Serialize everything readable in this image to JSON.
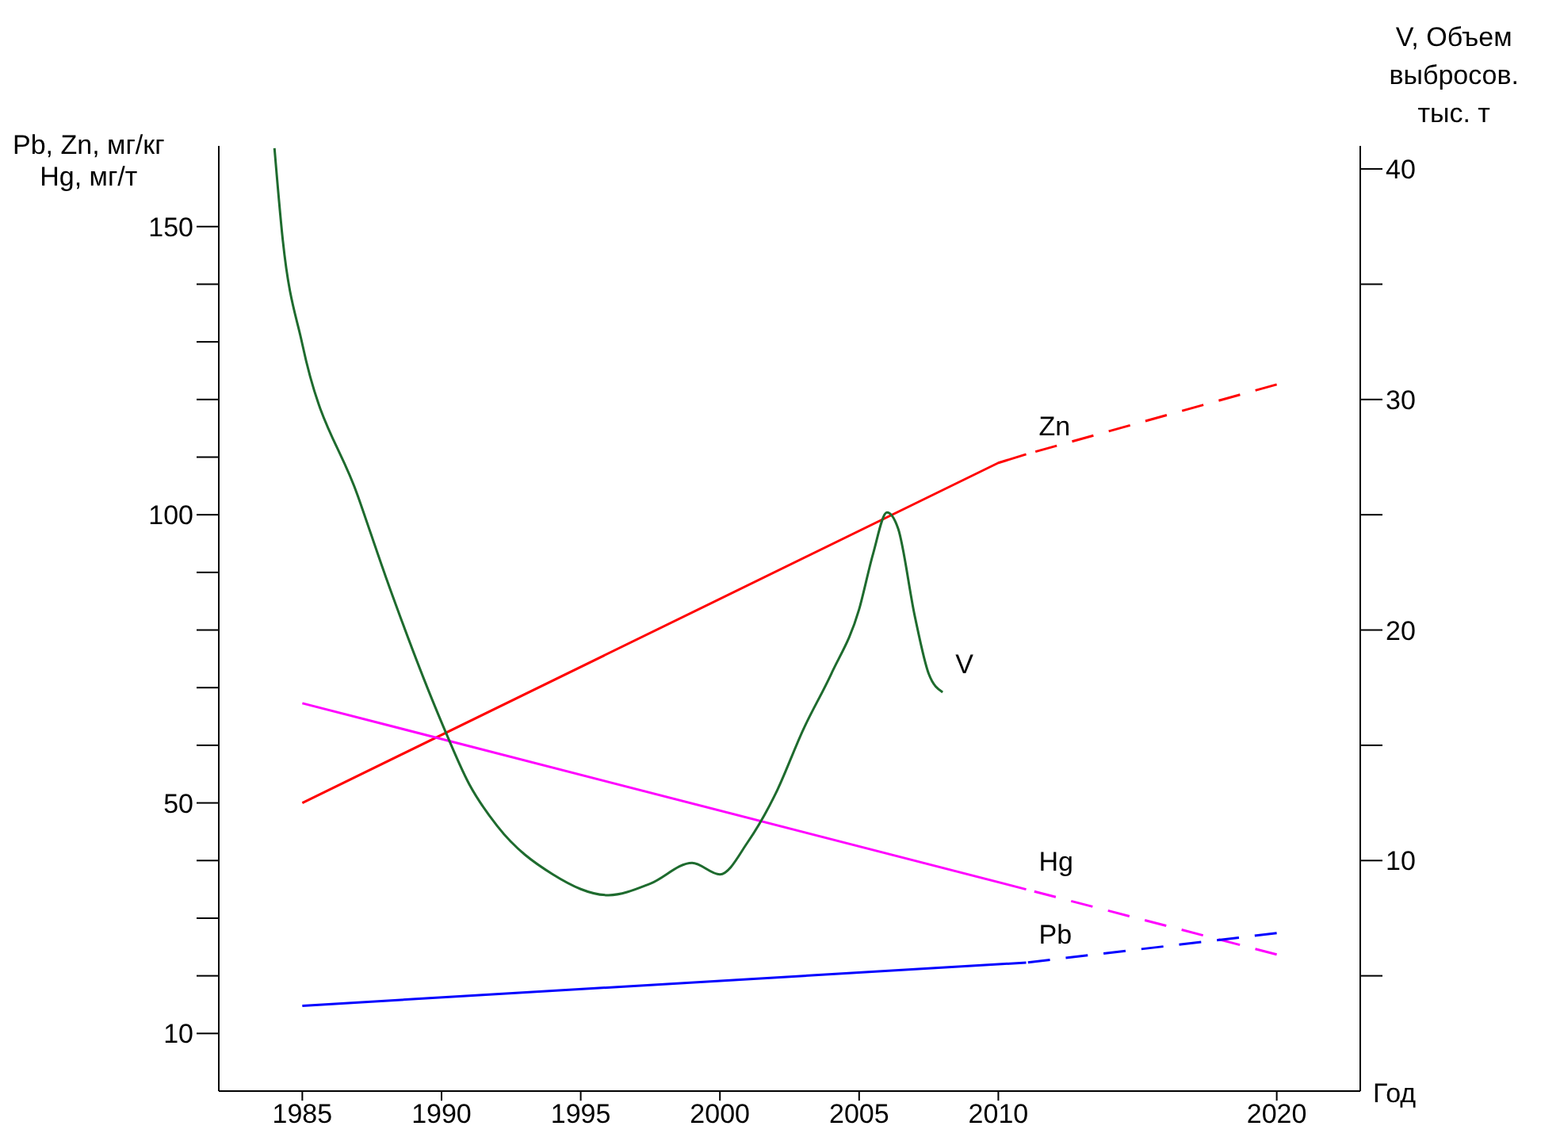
{
  "chart_data": {
    "type": "line",
    "ylabel": "Pb, Zn, мг/кг\nHg, мг/т",
    "y2label": "V, Объем\nвыбросов.\nтыс. т",
    "xlabel": "Год",
    "xlim": [
      1982,
      2023
    ],
    "xticks": [
      1985,
      1990,
      1995,
      2000,
      2005,
      2010,
      2020
    ],
    "ylim": [
      0,
      164
    ],
    "yticks": [
      10,
      {
        "value": 20,
        "label": null
      },
      {
        "value": 30,
        "label": null
      },
      {
        "value": 40,
        "label": null
      },
      50,
      {
        "value": 60,
        "label": null
      },
      {
        "value": 70,
        "label": null
      },
      {
        "value": 80,
        "label": null
      },
      {
        "value": 90,
        "label": null
      },
      100,
      {
        "value": 110,
        "label": null
      },
      {
        "value": 120,
        "label": null
      },
      {
        "value": 130,
        "label": null
      },
      {
        "value": 140,
        "label": null
      },
      150
    ],
    "y2lim": [
      0,
      41
    ],
    "y2ticks": [
      {
        "value": 5,
        "label": null
      },
      10,
      {
        "value": 15,
        "label": null
      },
      20,
      {
        "value": 25,
        "label": null
      },
      30,
      {
        "value": 35,
        "label": null
      },
      40
    ],
    "grid": false,
    "legend": false,
    "series": [
      {
        "name": "Zn",
        "color": "#ff0000",
        "x": [
          1985,
          2010,
          2011
        ],
        "values": [
          50,
          109,
          110.5
        ]
      },
      {
        "color": "#ff0000",
        "line_style": "dashed",
        "x": [
          2011,
          2020
        ],
        "values": [
          110.5,
          122.6
        ]
      },
      {
        "name": "Hg",
        "color": "#ff00ff",
        "x": [
          1985,
          2011
        ],
        "values": [
          67.3,
          35
        ]
      },
      {
        "color": "#ff00ff",
        "line_style": "dashed",
        "x": [
          2011,
          2020
        ],
        "values": [
          35,
          23.7
        ]
      },
      {
        "name": "Pb",
        "color": "#0000ff",
        "x": [
          1985,
          2011
        ],
        "values": [
          14.8,
          22.3
        ]
      },
      {
        "color": "#0000ff",
        "line_style": "dashed",
        "x": [
          2011,
          2020
        ],
        "values": [
          22.3,
          27.4
        ]
      },
      {
        "name": "V",
        "color": "#1e6b2e",
        "axis": "y2",
        "x": [
          1984,
          1984.3,
          1985,
          1987,
          1988,
          1990,
          1991,
          1992,
          1994,
          1996,
          1997.5,
          1999,
          2000,
          2001,
          2002,
          2003,
          2004,
          2005,
          2005.5,
          2006,
          2006.4,
          2007,
          2007.5,
          2008
        ],
        "values": [
          40.9,
          36.9,
          32.4,
          25.8,
          22.3,
          16,
          13.3,
          11.5,
          9.4,
          8.5,
          9,
          9.9,
          9.4,
          10.8,
          12.9,
          15.7,
          18.1,
          20.9,
          23.3,
          25.1,
          24.4,
          20.6,
          18.1,
          17.3
        ]
      }
    ]
  }
}
